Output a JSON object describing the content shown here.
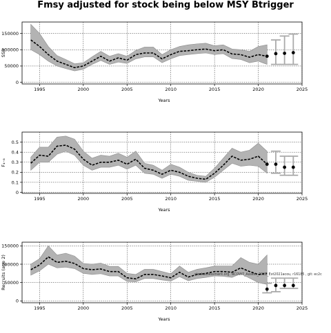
{
  "figure": {
    "title": "Fmsy adjusted for stock being below MSY Btrigger"
  },
  "chart_data": [
    {
      "type": "line",
      "xlabel": "Years",
      "ylabel": "SSB",
      "xlim": [
        1993,
        2025
      ],
      "ylim": [
        -5000,
        185000
      ],
      "xticks": [
        1995,
        2000,
        2005,
        2010,
        2015,
        2020,
        2025
      ],
      "yticks": [
        0,
        50000,
        100000,
        150000
      ],
      "grid": true,
      "series": [
        {
          "role": "median",
          "x": [
            1994,
            1995,
            1996,
            1997,
            1998,
            1999,
            2000,
            2001,
            2002,
            2003,
            2004,
            2005,
            2006,
            2007,
            2008,
            2009,
            2010,
            2011,
            2012,
            2013,
            2014,
            2015,
            2016,
            2017,
            2018,
            2019,
            2020,
            2021
          ],
          "values": [
            130000,
            110000,
            85000,
            65000,
            55000,
            45000,
            50000,
            65000,
            80000,
            65000,
            75000,
            68000,
            85000,
            90000,
            90000,
            72000,
            85000,
            95000,
            97000,
            100000,
            102000,
            97000,
            100000,
            87000,
            85000,
            77000,
            85000,
            80000
          ],
          "lower": [
            100000,
            85000,
            65000,
            50000,
            42000,
            35000,
            40000,
            55000,
            67000,
            55000,
            62000,
            58000,
            72000,
            78000,
            78000,
            60000,
            72000,
            82000,
            85000,
            88000,
            90000,
            85000,
            88000,
            73000,
            70000,
            60000,
            65000,
            55000
          ],
          "upper": [
            178000,
            150000,
            110000,
            82000,
            70000,
            57000,
            60000,
            78000,
            95000,
            80000,
            88000,
            80000,
            98000,
            108000,
            108000,
            85000,
            100000,
            110000,
            115000,
            118000,
            120000,
            112000,
            115000,
            102000,
            100000,
            95000,
            110000,
            115000
          ]
        },
        {
          "role": "forecast",
          "x": [
            2022,
            2023,
            2024
          ],
          "values": [
            88000,
            89000,
            91000
          ],
          "lower": [
            55000,
            55000,
            55000
          ],
          "upper": [
            130000,
            142000,
            148000
          ]
        }
      ]
    },
    {
      "type": "line",
      "xlabel": "Years",
      "ylabel": "F₄₋₈",
      "xlim": [
        1993,
        2025
      ],
      "ylim": [
        -0.01,
        0.6
      ],
      "xticks": [
        1995,
        2000,
        2005,
        2010,
        2015,
        2020,
        2025
      ],
      "yticks": [
        0.0,
        0.1,
        0.2,
        0.3,
        0.4,
        0.5
      ],
      "grid": true,
      "series": [
        {
          "role": "median",
          "x": [
            1994,
            1995,
            1996,
            1997,
            1998,
            1999,
            2000,
            2001,
            2002,
            2003,
            2004,
            2005,
            2006,
            2007,
            2008,
            2009,
            2010,
            2011,
            2012,
            2013,
            2014,
            2015,
            2016,
            2017,
            2018,
            2019,
            2020,
            2021
          ],
          "values": [
            0.29,
            0.37,
            0.36,
            0.46,
            0.47,
            0.43,
            0.33,
            0.27,
            0.3,
            0.3,
            0.32,
            0.28,
            0.33,
            0.24,
            0.22,
            0.18,
            0.22,
            0.2,
            0.16,
            0.14,
            0.13,
            0.19,
            0.27,
            0.36,
            0.32,
            0.33,
            0.36,
            0.28
          ],
          "lower": [
            0.22,
            0.3,
            0.3,
            0.38,
            0.41,
            0.37,
            0.27,
            0.22,
            0.25,
            0.25,
            0.27,
            0.23,
            0.27,
            0.19,
            0.18,
            0.14,
            0.18,
            0.16,
            0.12,
            0.11,
            0.1,
            0.15,
            0.22,
            0.29,
            0.26,
            0.27,
            0.26,
            0.19
          ],
          "upper": [
            0.35,
            0.45,
            0.45,
            0.55,
            0.56,
            0.53,
            0.41,
            0.34,
            0.37,
            0.36,
            0.39,
            0.35,
            0.41,
            0.29,
            0.27,
            0.22,
            0.28,
            0.25,
            0.2,
            0.17,
            0.16,
            0.24,
            0.34,
            0.44,
            0.4,
            0.42,
            0.49,
            0.41
          ]
        },
        {
          "role": "forecast",
          "x": [
            2022,
            2023,
            2024
          ],
          "values": [
            0.28,
            0.25,
            0.25
          ],
          "lower": [
            0.19,
            0.17,
            0.17
          ],
          "upper": [
            0.41,
            0.36,
            0.36
          ]
        }
      ]
    },
    {
      "type": "line",
      "xlabel": "Years",
      "ylabel": "Recruits (age 2)",
      "xlim": [
        1993,
        2025
      ],
      "ylim": [
        -5000,
        160000
      ],
      "xticks": [
        1995,
        2000,
        2005,
        2010,
        2015,
        2020,
        2025
      ],
      "yticks": [
        0,
        50000,
        100000,
        150000
      ],
      "grid": true,
      "annotation": "stockassessment.org, NCOW7_Assess_2022_Ext2021acou, r16185 , git: ec2c",
      "series": [
        {
          "role": "median",
          "x": [
            1994,
            1995,
            1996,
            1997,
            1998,
            1999,
            2000,
            2001,
            2002,
            2003,
            2004,
            2005,
            2006,
            2007,
            2008,
            2009,
            2010,
            2011,
            2012,
            2013,
            2014,
            2015,
            2016,
            2017,
            2018,
            2019,
            2020,
            2021
          ],
          "values": [
            85000,
            98000,
            120000,
            105000,
            108000,
            102000,
            88000,
            85000,
            87000,
            80000,
            80000,
            63000,
            60000,
            72000,
            72000,
            68000,
            63000,
            78000,
            65000,
            72000,
            75000,
            80000,
            80000,
            78000,
            90000,
            80000,
            72000,
            75000
          ],
          "lower": [
            70000,
            82000,
            100000,
            90000,
            92000,
            88000,
            75000,
            72000,
            74000,
            68000,
            68000,
            53000,
            52000,
            61000,
            61000,
            57000,
            54000,
            66000,
            55000,
            61000,
            64000,
            68000,
            67000,
            64000,
            74000,
            62000,
            50000,
            45000
          ],
          "upper": [
            100000,
            115000,
            150000,
            125000,
            130000,
            122000,
            102000,
            100000,
            103000,
            94000,
            94000,
            75000,
            72000,
            86000,
            86000,
            80000,
            74000,
            95000,
            78000,
            86000,
            90000,
            95000,
            95000,
            95000,
            118000,
            105000,
            100000,
            125000
          ]
        },
        {
          "role": "forecast",
          "x": [
            2021,
            2022,
            2023,
            2024
          ],
          "values": [
            32000,
            42000,
            42000,
            42000
          ],
          "lower": [
            22000,
            25000,
            34000,
            34000
          ],
          "upper": [
            48000,
            62000,
            62000,
            62000
          ]
        }
      ]
    }
  ]
}
